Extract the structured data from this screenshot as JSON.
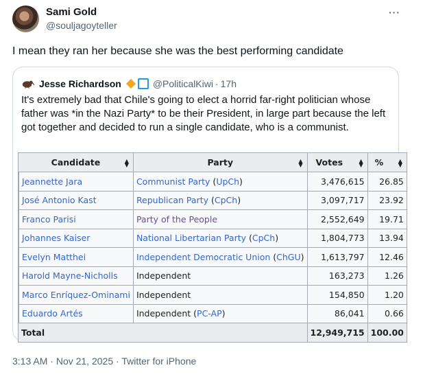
{
  "author": {
    "name": "Sami Gold",
    "handle": "@souljagoyteller"
  },
  "more_label": "···",
  "tweet_text": "I mean they ran her because she was the best performing candidate",
  "quote": {
    "name": "Jesse Richardson",
    "handle": "@PoliticalKiwi",
    "dot": "·",
    "time": "17h",
    "text": "It's extremely bad that Chile's going to elect a horrid far-right politician whose father was *in the Nazi Party* to be their President, in large part because the left got together and decided to run a single candidate, who is a communist.",
    "badge_color": "#f4a524"
  },
  "table": {
    "headers": {
      "candidate": "Candidate",
      "party": "Party",
      "votes": "Votes",
      "pct": "%"
    },
    "rows": [
      {
        "color": "#cc2222",
        "candidate": "Jeannette Jara",
        "party_name": "Communist Party",
        "party_abbr": "UpCh",
        "votes": "3,476,615",
        "pct": "26.85"
      },
      {
        "color": "#23568a",
        "candidate": "José Antonio Kast",
        "party_name": "Republican Party",
        "party_abbr": "CpCh",
        "votes": "3,097,717",
        "pct": "23.92"
      },
      {
        "color": "#122c78",
        "candidate": "Franco Parisi",
        "party_name": "Party of the People",
        "party_abbr": "",
        "votes": "2,552,649",
        "pct": "19.71"
      },
      {
        "color": "#f5a623",
        "candidate": "Johannes Kaiser",
        "party_name": "National Libertarian Party",
        "party_abbr": "CpCh",
        "votes": "1,804,773",
        "pct": "13.94"
      },
      {
        "color": "#273f8f",
        "candidate": "Evelyn Matthei",
        "party_name": "Independent Democratic Union",
        "party_abbr": "ChGU",
        "votes": "1,613,797",
        "pct": "12.46"
      },
      {
        "color": "#d9d9d9",
        "candidate": "Harold Mayne-Nicholls",
        "party_name": "Independent",
        "party_abbr": "",
        "votes": "163,273",
        "pct": "1.26"
      },
      {
        "color": "#d9d9d9",
        "candidate": "Marco Enríquez-Ominami",
        "party_name": "Independent",
        "party_abbr": "",
        "votes": "154,850",
        "pct": "1.20"
      },
      {
        "color": "#dd1111",
        "candidate": "Eduardo Artés",
        "party_name": "Independent",
        "party_abbr": "PC-AP",
        "votes": "86,041",
        "pct": "0.66"
      }
    ],
    "total": {
      "label": "Total",
      "votes": "12,949,715",
      "pct": "100.00"
    }
  },
  "footer": {
    "time": "3:13 AM",
    "dot": "·",
    "date": "Nov 21, 2025",
    "source": "Twitter for iPhone"
  }
}
